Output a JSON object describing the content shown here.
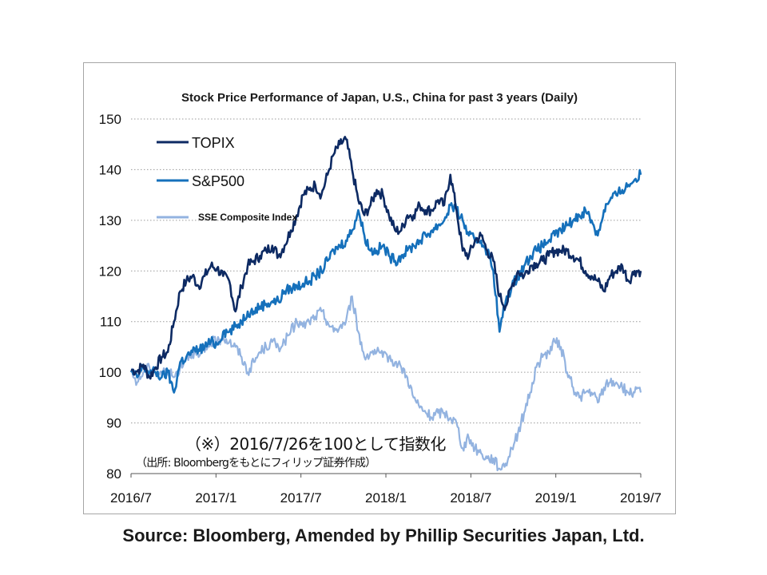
{
  "chart_data": {
    "type": "line",
    "title": "Stock Price Performance of Japan, U.S., China for past 3 years (Daily)",
    "x_tick_labels": [
      "2016/7",
      "2017/1",
      "2017/7",
      "2018/1",
      "2018/7",
      "2019/1",
      "2019/7"
    ],
    "y_ticks": [
      80,
      90,
      100,
      110,
      120,
      130,
      140,
      150
    ],
    "ylim": [
      80,
      150
    ],
    "grid": "horizontal dotted",
    "legend_position": "top-left",
    "series": [
      {
        "name": "TOPIX",
        "color": "#0d2a63",
        "points": [
          [
            0,
            100.5
          ],
          [
            0.25,
            100.2
          ],
          [
            0.5,
            101.5
          ],
          [
            0.75,
            99
          ],
          [
            1,
            101
          ],
          [
            1.25,
            103
          ],
          [
            1.5,
            104
          ],
          [
            1.75,
            110
          ],
          [
            2,
            116
          ],
          [
            2.25,
            118
          ],
          [
            2.5,
            119
          ],
          [
            2.75,
            117
          ],
          [
            3,
            119
          ],
          [
            3.25,
            121
          ],
          [
            3.5,
            120.5
          ],
          [
            3.75,
            119
          ],
          [
            4,
            118
          ],
          [
            4.25,
            112
          ],
          [
            4.5,
            117
          ],
          [
            4.75,
            121
          ],
          [
            5,
            122
          ],
          [
            5.25,
            123
          ],
          [
            5.5,
            124
          ],
          [
            5.75,
            125
          ],
          [
            6,
            123
          ],
          [
            6.25,
            125
          ],
          [
            6.5,
            128
          ],
          [
            6.75,
            131
          ],
          [
            7,
            135
          ],
          [
            7.25,
            136
          ],
          [
            7.5,
            137
          ],
          [
            7.75,
            135
          ],
          [
            8,
            139
          ],
          [
            8.25,
            143
          ],
          [
            8.5,
            145
          ],
          [
            8.75,
            146
          ],
          [
            9,
            140
          ],
          [
            9.25,
            134
          ],
          [
            9.5,
            131
          ],
          [
            9.75,
            133
          ],
          [
            10,
            136
          ],
          [
            10.25,
            135
          ],
          [
            10.5,
            131
          ],
          [
            10.75,
            128
          ],
          [
            11,
            128
          ],
          [
            11.25,
            131
          ],
          [
            11.5,
            131
          ],
          [
            11.75,
            133
          ],
          [
            12,
            132
          ],
          [
            12.25,
            132
          ],
          [
            12.5,
            134
          ],
          [
            12.75,
            133
          ],
          [
            13,
            139
          ],
          [
            13.25,
            132
          ],
          [
            13.5,
            124
          ],
          [
            13.75,
            123
          ],
          [
            14,
            126
          ],
          [
            14.25,
            127
          ],
          [
            14.5,
            124
          ],
          [
            14.75,
            122
          ],
          [
            15,
            115
          ],
          [
            15.25,
            113
          ],
          [
            15.5,
            117
          ],
          [
            15.75,
            120
          ],
          [
            16,
            119
          ],
          [
            16.25,
            121
          ],
          [
            16.5,
            121.5
          ],
          [
            16.75,
            122
          ],
          [
            17,
            123
          ],
          [
            17.25,
            124
          ],
          [
            17.5,
            124
          ],
          [
            17.75,
            124
          ],
          [
            18,
            123
          ],
          [
            18.25,
            122
          ],
          [
            18.5,
            120
          ],
          [
            18.75,
            119
          ],
          [
            19,
            118
          ],
          [
            19.25,
            116
          ],
          [
            19.5,
            119
          ],
          [
            19.75,
            120
          ],
          [
            20,
            121
          ],
          [
            20.25,
            118
          ],
          [
            20.5,
            120
          ],
          [
            20.75,
            120
          ]
        ]
      },
      {
        "name": "S&P500",
        "color": "#1570bb",
        "points": [
          [
            0,
            100
          ],
          [
            0.25,
            99
          ],
          [
            0.5,
            101
          ],
          [
            0.75,
            100
          ],
          [
            1,
            100
          ],
          [
            1.25,
            99
          ],
          [
            1.5,
            100
          ],
          [
            1.75,
            96
          ],
          [
            2,
            102
          ],
          [
            2.25,
            103
          ],
          [
            2.5,
            104
          ],
          [
            2.75,
            104.5
          ],
          [
            3,
            105
          ],
          [
            3.25,
            106
          ],
          [
            3.5,
            105.5
          ],
          [
            3.75,
            108
          ],
          [
            4,
            108
          ],
          [
            4.25,
            109
          ],
          [
            4.5,
            110
          ],
          [
            4.75,
            112
          ],
          [
            5,
            112
          ],
          [
            5.25,
            113
          ],
          [
            5.5,
            113.5
          ],
          [
            5.75,
            114
          ],
          [
            6,
            114
          ],
          [
            6.25,
            116
          ],
          [
            6.5,
            116.5
          ],
          [
            6.75,
            117
          ],
          [
            7,
            117.5
          ],
          [
            7.25,
            118
          ],
          [
            7.5,
            119
          ],
          [
            7.75,
            120
          ],
          [
            8,
            122
          ],
          [
            8.25,
            124
          ],
          [
            8.5,
            125
          ],
          [
            8.75,
            126
          ],
          [
            9,
            128
          ],
          [
            9.25,
            132
          ],
          [
            9.5,
            127
          ],
          [
            9.75,
            124
          ],
          [
            10,
            124
          ],
          [
            10.25,
            125
          ],
          [
            10.5,
            123
          ],
          [
            10.75,
            122
          ],
          [
            11,
            123
          ],
          [
            11.25,
            124
          ],
          [
            11.5,
            125
          ],
          [
            11.75,
            126
          ],
          [
            12,
            127
          ],
          [
            12.25,
            128
          ],
          [
            12.5,
            129
          ],
          [
            12.75,
            130
          ],
          [
            13,
            133
          ],
          [
            13.25,
            132
          ],
          [
            13.5,
            130
          ],
          [
            13.75,
            127
          ],
          [
            14,
            126
          ],
          [
            14.25,
            126
          ],
          [
            14.5,
            124
          ],
          [
            14.75,
            120
          ],
          [
            15,
            108
          ],
          [
            15.25,
            114
          ],
          [
            15.5,
            117
          ],
          [
            15.75,
            119
          ],
          [
            16,
            121
          ],
          [
            16.25,
            123
          ],
          [
            16.5,
            124
          ],
          [
            16.75,
            125
          ],
          [
            17,
            126
          ],
          [
            17.25,
            127
          ],
          [
            17.5,
            128
          ],
          [
            17.75,
            129
          ],
          [
            18,
            130
          ],
          [
            18.25,
            131
          ],
          [
            18.5,
            132
          ],
          [
            18.75,
            130
          ],
          [
            19,
            127
          ],
          [
            19.25,
            132
          ],
          [
            19.5,
            134
          ],
          [
            19.75,
            135
          ],
          [
            20,
            136
          ],
          [
            20.25,
            137
          ],
          [
            20.5,
            138
          ],
          [
            20.75,
            139
          ]
        ]
      },
      {
        "name": "SSE Composite Index",
        "color": "#93b3e0",
        "points": [
          [
            0,
            100
          ],
          [
            0.25,
            98
          ],
          [
            0.5,
            100
          ],
          [
            0.75,
            101
          ],
          [
            1,
            100
          ],
          [
            1.25,
            100
          ],
          [
            1.5,
            100
          ],
          [
            1.75,
            99
          ],
          [
            2,
            101
          ],
          [
            2.25,
            103
          ],
          [
            2.5,
            104
          ],
          [
            2.75,
            103
          ],
          [
            3,
            104
          ],
          [
            3.25,
            106
          ],
          [
            3.5,
            106
          ],
          [
            3.75,
            107
          ],
          [
            4,
            106
          ],
          [
            4.25,
            105
          ],
          [
            4.5,
            103
          ],
          [
            4.75,
            100
          ],
          [
            5,
            102
          ],
          [
            5.25,
            104
          ],
          [
            5.5,
            105
          ],
          [
            5.75,
            106
          ],
          [
            6,
            105
          ],
          [
            6.25,
            106
          ],
          [
            6.5,
            108
          ],
          [
            6.75,
            110
          ],
          [
            7,
            109
          ],
          [
            7.25,
            110
          ],
          [
            7.5,
            111
          ],
          [
            7.75,
            112
          ],
          [
            8,
            110
          ],
          [
            8.25,
            108
          ],
          [
            8.5,
            109
          ],
          [
            8.75,
            110
          ],
          [
            9,
            115
          ],
          [
            9.25,
            108
          ],
          [
            9.5,
            103
          ],
          [
            9.75,
            104
          ],
          [
            10,
            104
          ],
          [
            10.25,
            103
          ],
          [
            10.5,
            103
          ],
          [
            10.75,
            102
          ],
          [
            11,
            101
          ],
          [
            11.25,
            99
          ],
          [
            11.5,
            95
          ],
          [
            11.75,
            93
          ],
          [
            12,
            92
          ],
          [
            12.25,
            91
          ],
          [
            12.5,
            92
          ],
          [
            12.75,
            92
          ],
          [
            13,
            91
          ],
          [
            13.25,
            90
          ],
          [
            13.5,
            85
          ],
          [
            13.75,
            87
          ],
          [
            14,
            85
          ],
          [
            14.25,
            84
          ],
          [
            14.5,
            83
          ],
          [
            14.75,
            83
          ],
          [
            15,
            81
          ],
          [
            15.25,
            82
          ],
          [
            15.5,
            85
          ],
          [
            15.75,
            88
          ],
          [
            16,
            92
          ],
          [
            16.25,
            96
          ],
          [
            16.5,
            101
          ],
          [
            16.75,
            103
          ],
          [
            17,
            104
          ],
          [
            17.25,
            106
          ],
          [
            17.5,
            105
          ],
          [
            17.75,
            100
          ],
          [
            18,
            97
          ],
          [
            18.25,
            95
          ],
          [
            18.5,
            96
          ],
          [
            18.75,
            96
          ],
          [
            19,
            94
          ],
          [
            19.25,
            97
          ],
          [
            19.5,
            98
          ],
          [
            19.75,
            98
          ],
          [
            20,
            97
          ],
          [
            20.25,
            96
          ],
          [
            20.5,
            96
          ],
          [
            20.75,
            96
          ]
        ]
      }
    ]
  },
  "notes": {
    "base_note": "（※）2016/7/26を100として指数化",
    "source_note": "（出所: Bloombergをもとにフィリップ証券作成）"
  },
  "footer": {
    "source": "Source: Bloomberg, Amended by Phillip Securities Japan, Ltd."
  }
}
